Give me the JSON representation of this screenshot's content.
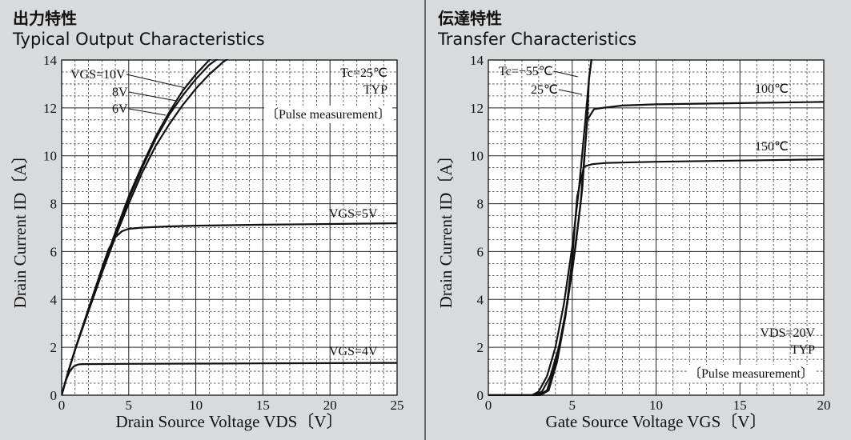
{
  "left": {
    "title_jp": "出力特性",
    "title_en": "Typical Output Characteristics"
  },
  "right": {
    "title_jp": "伝達特性",
    "title_en": "Transfer Characteristics"
  },
  "chart_data": [
    {
      "type": "line",
      "title": "Typical Output Characteristics",
      "xlabel": "Drain Source Voltage  VDS〔V〕",
      "ylabel": "Drain Current  ID〔A〕",
      "xlim": [
        0,
        25
      ],
      "ylim": [
        0,
        14
      ],
      "xticks": [
        0,
        5,
        10,
        15,
        20,
        25
      ],
      "yticks": [
        0,
        2,
        4,
        6,
        8,
        10,
        12,
        14
      ],
      "grid": true,
      "annotations": [
        "Tc=25℃",
        "TYP",
        "〔Pulse measurement〕"
      ],
      "series": [
        {
          "name": "VGS=10V",
          "x": [
            0,
            0.5,
            1,
            2,
            3,
            4,
            5,
            6,
            7,
            8,
            9,
            10,
            11,
            11.5
          ],
          "y": [
            0,
            1.0,
            1.9,
            3.6,
            5.2,
            6.8,
            8.3,
            9.6,
            10.8,
            11.8,
            12.7,
            13.4,
            14.0,
            14.3
          ]
        },
        {
          "name": "8V",
          "x": [
            0,
            0.5,
            1,
            2,
            3,
            4,
            5,
            6,
            7,
            8,
            9,
            10,
            11,
            12
          ],
          "y": [
            0,
            1.0,
            1.9,
            3.6,
            5.2,
            6.7,
            8.2,
            9.5,
            10.7,
            11.7,
            12.5,
            13.2,
            13.8,
            14.2
          ]
        },
        {
          "name": "6V",
          "x": [
            0,
            0.5,
            1,
            2,
            3,
            4,
            5,
            6,
            7,
            8,
            9,
            10,
            11,
            12,
            12.5
          ],
          "y": [
            0,
            1.0,
            1.9,
            3.5,
            5.1,
            6.6,
            8.0,
            9.3,
            10.4,
            11.3,
            12.1,
            12.8,
            13.4,
            13.9,
            14.1
          ]
        },
        {
          "name": "VGS=5V",
          "x": [
            0,
            0.5,
            1,
            2,
            3,
            3.5,
            4,
            4.5,
            5,
            6,
            8,
            10,
            15,
            20,
            25
          ],
          "y": [
            0,
            1.0,
            1.9,
            3.6,
            5.3,
            6.1,
            6.6,
            6.85,
            6.95,
            7.0,
            7.05,
            7.08,
            7.12,
            7.15,
            7.18
          ]
        },
        {
          "name": "VGS=4V",
          "x": [
            0,
            0.3,
            0.6,
            0.9,
            1.2,
            1.5,
            2,
            5,
            10,
            15,
            20,
            25
          ],
          "y": [
            0,
            0.6,
            1.0,
            1.2,
            1.28,
            1.3,
            1.3,
            1.31,
            1.32,
            1.33,
            1.34,
            1.35
          ]
        }
      ]
    },
    {
      "type": "line",
      "title": "Transfer Characteristics",
      "xlabel": "Gate Source Voltage  VGS〔V〕",
      "ylabel": "Drain Current  ID〔A〕",
      "xlim": [
        0,
        20
      ],
      "ylim": [
        0,
        14
      ],
      "xticks": [
        0,
        5,
        10,
        15,
        20
      ],
      "yticks": [
        0,
        2,
        4,
        6,
        8,
        10,
        12,
        14
      ],
      "grid": true,
      "annotations": [
        "VDS=20V",
        "TYP",
        "〔Pulse measurement〕"
      ],
      "series": [
        {
          "name": "Tc=−55℃",
          "x": [
            0,
            2.6,
            3.0,
            3.5,
            4.0,
            4.5,
            5.0,
            5.4,
            5.8,
            6.0,
            6.2
          ],
          "y": [
            0,
            0,
            0.15,
            0.8,
            2.0,
            3.8,
            6.2,
            8.6,
            11.6,
            13.2,
            14.3
          ]
        },
        {
          "name": "25℃",
          "x": [
            0,
            2.8,
            3.2,
            3.7,
            4.2,
            4.7,
            5.2,
            5.6,
            5.9,
            6.0,
            6.2
          ],
          "y": [
            0,
            0,
            0.15,
            0.8,
            2.0,
            3.8,
            6.2,
            8.6,
            11.6,
            13.2,
            14.3
          ]
        },
        {
          "name": "100℃",
          "x": [
            0,
            3.0,
            3.5,
            4.0,
            4.5,
            5.0,
            5.5,
            5.9,
            6.3,
            6.8,
            8,
            10,
            15,
            20
          ],
          "y": [
            0,
            0,
            0.2,
            1.3,
            3.0,
            5.2,
            8.0,
            11.5,
            11.95,
            12.0,
            12.1,
            12.15,
            12.2,
            12.25
          ]
        },
        {
          "name": "150℃",
          "x": [
            0,
            3.1,
            3.6,
            4.1,
            4.6,
            5.0,
            5.3,
            5.7,
            6.2,
            7,
            10,
            15,
            20
          ],
          "y": [
            0,
            0,
            0.2,
            1.4,
            3.3,
            5.7,
            8.3,
            9.55,
            9.65,
            9.7,
            9.75,
            9.8,
            9.85
          ]
        }
      ]
    }
  ]
}
